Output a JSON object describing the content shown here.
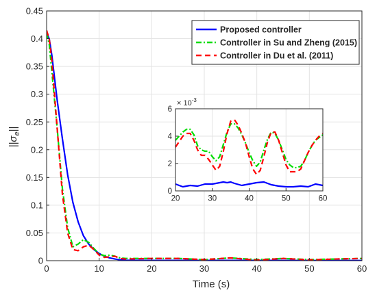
{
  "chart_data": [
    {
      "type": "line",
      "xlabel": "Time (s)",
      "ylabel_base": "||σ",
      "ylabel_sub": "e",
      "ylabel_end": "||",
      "xlim": [
        0,
        60
      ],
      "ylim": [
        0,
        0.45
      ],
      "xticks": [
        0,
        10,
        20,
        30,
        40,
        50,
        60
      ],
      "xtick_labels": [
        "0",
        "10",
        "20",
        "30",
        "40",
        "50",
        "60"
      ],
      "yticks": [
        0,
        0.05,
        0.1,
        0.15,
        0.2,
        0.25,
        0.3,
        0.35,
        0.4,
        0.45
      ],
      "ytick_labels": [
        "0",
        "0.05",
        "0.1",
        "0.15",
        "0.2",
        "0.25",
        "0.3",
        "0.35",
        "0.4",
        "0.45"
      ],
      "grid": true,
      "legend_position": "top-right",
      "series": [
        {
          "name": "Proposed controller",
          "color": "#0000ff",
          "dash": "solid",
          "x": [
            0,
            0.5,
            1,
            1.5,
            2,
            3,
            4,
            5,
            6,
            7,
            8,
            9,
            10,
            11,
            12,
            13,
            14,
            15,
            20,
            30,
            40,
            50,
            60
          ],
          "y": [
            0.41,
            0.4,
            0.37,
            0.33,
            0.29,
            0.22,
            0.155,
            0.105,
            0.07,
            0.045,
            0.03,
            0.02,
            0.013,
            0.008,
            0.005,
            0.003,
            0.0015,
            0.0008,
            0.0005,
            0.0005,
            0.0005,
            0.0004,
            0.0004
          ]
        },
        {
          "name": "Controller in Su and Zheng (2015)",
          "color": "#00dd00",
          "dash": "dashdot",
          "x": [
            0,
            0.5,
            1,
            1.5,
            2,
            3,
            4,
            5,
            6,
            7,
            8,
            9,
            10,
            11,
            12,
            13,
            14,
            15,
            20,
            25,
            30,
            35,
            40,
            45,
            50,
            55,
            60
          ],
          "y": [
            0.41,
            0.39,
            0.34,
            0.29,
            0.24,
            0.13,
            0.06,
            0.025,
            0.03,
            0.038,
            0.033,
            0.022,
            0.012,
            0.009,
            0.01,
            0.008,
            0.005,
            0.004,
            0.004,
            0.004,
            0.002,
            0.005,
            0.002,
            0.004,
            0.002,
            0.003,
            0.004
          ]
        },
        {
          "name": "Controller in Du et al. (2011)",
          "color": "#ff0000",
          "dash": "dashed",
          "x": [
            0,
            0.5,
            1,
            1.5,
            2,
            3,
            4,
            5,
            6,
            7,
            8,
            9,
            10,
            11,
            12,
            13,
            14,
            15,
            20,
            25,
            30,
            35,
            40,
            45,
            50,
            55,
            60
          ],
          "y": [
            0.415,
            0.4,
            0.36,
            0.3,
            0.24,
            0.12,
            0.05,
            0.02,
            0.018,
            0.025,
            0.028,
            0.02,
            0.01,
            0.006,
            0.007,
            0.008,
            0.004,
            0.003,
            0.004,
            0.004,
            0.002,
            0.005,
            0.001,
            0.004,
            0.0015,
            0.003,
            0.004
          ]
        }
      ]
    },
    {
      "type": "line",
      "scale_label": "× 10",
      "scale_exponent": "-3",
      "xlim": [
        20,
        60
      ],
      "ylim": [
        0,
        6
      ],
      "xticks": [
        20,
        30,
        40,
        50,
        60
      ],
      "xtick_labels": [
        "20",
        "30",
        "40",
        "50",
        "60"
      ],
      "yticks": [
        0,
        2,
        4,
        6
      ],
      "ytick_labels": [
        "0",
        "2",
        "4",
        "6"
      ],
      "grid": true,
      "series": [
        {
          "color": "#0000ff",
          "dash": "solid",
          "x": [
            20,
            22,
            24,
            26,
            28,
            30,
            32,
            33,
            34,
            35,
            36,
            38,
            40,
            42,
            44,
            46,
            48,
            50,
            52,
            54,
            56,
            58,
            60
          ],
          "y": [
            0.5,
            0.3,
            0.4,
            0.35,
            0.5,
            0.5,
            0.6,
            0.65,
            0.6,
            0.65,
            0.55,
            0.4,
            0.5,
            0.6,
            0.65,
            0.45,
            0.35,
            0.3,
            0.3,
            0.35,
            0.3,
            0.5,
            0.4
          ]
        },
        {
          "color": "#00dd00",
          "dash": "dashdot",
          "x": [
            20,
            21,
            22,
            23,
            24,
            25,
            26,
            27,
            28,
            29,
            30,
            31,
            32,
            33,
            34,
            35,
            36,
            37,
            38,
            39,
            40,
            41,
            42,
            43,
            44,
            45,
            46,
            47,
            48,
            49,
            50,
            51,
            52,
            53,
            54,
            55,
            56,
            57,
            58,
            59,
            60
          ],
          "y": [
            3.7,
            4.0,
            4.3,
            4.5,
            4.5,
            4.1,
            3.3,
            3.0,
            2.9,
            2.9,
            2.5,
            2.2,
            2.5,
            3.4,
            4.3,
            4.9,
            4.9,
            4.6,
            4.1,
            3.5,
            2.8,
            2.2,
            1.8,
            2.1,
            3.0,
            3.8,
            4.3,
            4.2,
            3.7,
            3.0,
            2.3,
            1.9,
            1.7,
            1.7,
            1.8,
            2.2,
            2.8,
            3.3,
            3.7,
            3.9,
            4.1
          ]
        },
        {
          "color": "#ff0000",
          "dash": "dashed",
          "x": [
            20,
            21,
            22,
            23,
            24,
            25,
            26,
            27,
            28,
            29,
            30,
            31,
            32,
            33,
            34,
            35,
            36,
            37,
            38,
            39,
            40,
            41,
            42,
            43,
            44,
            45,
            46,
            47,
            48,
            49,
            50,
            51,
            52,
            53,
            54,
            55,
            56,
            57,
            58,
            59,
            60
          ],
          "y": [
            3.2,
            3.6,
            4.0,
            4.2,
            4.2,
            3.7,
            3.0,
            2.6,
            2.6,
            2.3,
            1.9,
            1.5,
            1.8,
            2.9,
            4.2,
            5.1,
            5.2,
            4.8,
            4.2,
            3.5,
            2.5,
            1.6,
            1.2,
            1.5,
            2.5,
            3.6,
            4.3,
            4.3,
            3.7,
            2.8,
            1.9,
            1.4,
            1.4,
            1.4,
            1.6,
            2.2,
            2.8,
            3.3,
            3.7,
            4.0,
            4.2
          ]
        }
      ]
    }
  ]
}
